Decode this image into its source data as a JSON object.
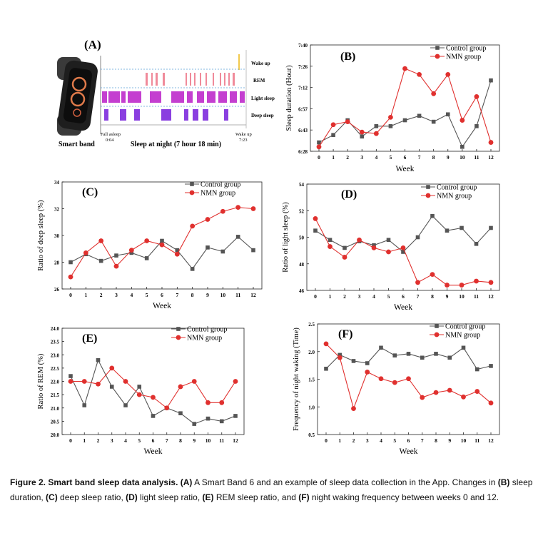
{
  "panel_a": {
    "label": "(A)",
    "device_caption": "Smart band",
    "chart_caption": "Sleep at night (7 hour 18 min)",
    "stages": [
      "Wake up",
      "REM",
      "Light sleep",
      "Deep sleep"
    ],
    "fall_asleep_label": "Fall asleep",
    "fall_asleep_time": "0:04",
    "wake_label": "Wake up",
    "wake_time": "7:23",
    "colors": {
      "rem": "#f08a9a",
      "light": "#c43fd0",
      "deep": "#8a3fe0",
      "wake": "#f2c94c",
      "band": "#2b2b2b",
      "strap": "#3a3a3a"
    }
  },
  "chart_data": [
    {
      "panel": "(B)",
      "type": "line",
      "ylabel": "Sleep duration (Hour)",
      "xlabel": "Week",
      "x": [
        0,
        1,
        2,
        3,
        4,
        5,
        6,
        7,
        8,
        9,
        10,
        11,
        12
      ],
      "yticks": [
        "6:28",
        "6:43",
        "6:57",
        "7:12",
        "7:26",
        "7:40"
      ],
      "ylim": [
        388,
        460
      ],
      "legend": "top-right",
      "series": [
        {
          "name": "Control group",
          "color": "#555555",
          "marker": "square",
          "values": [
            394,
            399,
            409,
            398,
            405,
            405,
            409,
            412,
            408,
            413,
            391,
            405,
            436
          ]
        },
        {
          "name": "NMN group",
          "color": "#e0302e",
          "marker": "circle",
          "values": [
            391,
            406,
            408,
            401,
            400,
            411,
            444,
            440,
            427,
            440,
            409,
            425,
            394
          ]
        }
      ]
    },
    {
      "panel": "(C)",
      "type": "line",
      "ylabel": "Ratio of deep sleep (%)",
      "xlabel": "Week",
      "x": [
        0,
        1,
        2,
        3,
        4,
        5,
        6,
        7,
        8,
        9,
        10,
        11,
        12
      ],
      "yticks": [
        "26",
        "28",
        "30",
        "32",
        "34"
      ],
      "ylim": [
        26,
        34
      ],
      "legend": "top-right",
      "series": [
        {
          "name": "Control group",
          "color": "#555555",
          "marker": "square",
          "values": [
            28.0,
            28.6,
            28.1,
            28.5,
            28.7,
            28.3,
            29.6,
            28.9,
            27.5,
            29.1,
            28.8,
            29.9,
            28.9
          ]
        },
        {
          "name": "NMN group",
          "color": "#e0302e",
          "marker": "circle",
          "values": [
            26.9,
            28.7,
            29.6,
            27.7,
            28.9,
            29.6,
            29.3,
            28.6,
            30.7,
            31.2,
            31.8,
            32.1,
            32.0
          ]
        }
      ]
    },
    {
      "panel": "(D)",
      "type": "line",
      "ylabel": "Ratio of light sleep (%)",
      "xlabel": "Week",
      "x": [
        0,
        1,
        2,
        3,
        4,
        5,
        6,
        7,
        8,
        9,
        10,
        11,
        12
      ],
      "yticks": [
        "46",
        "48",
        "50",
        "52",
        "54"
      ],
      "ylim": [
        46,
        54
      ],
      "legend": "top-right",
      "series": [
        {
          "name": "Control group",
          "color": "#555555",
          "marker": "square",
          "values": [
            50.5,
            49.8,
            49.2,
            49.7,
            49.4,
            49.8,
            48.9,
            50.0,
            51.6,
            50.5,
            50.7,
            49.5,
            50.7
          ]
        },
        {
          "name": "NMN group",
          "color": "#e0302e",
          "marker": "circle",
          "values": [
            51.4,
            49.3,
            48.5,
            49.8,
            49.2,
            48.9,
            49.2,
            46.6,
            47.2,
            46.4,
            46.4,
            46.7,
            46.6
          ]
        }
      ]
    },
    {
      "panel": "(E)",
      "type": "line",
      "ylabel": "Ratio of REM (%)",
      "xlabel": "Week",
      "x": [
        0,
        1,
        2,
        3,
        4,
        5,
        6,
        7,
        8,
        9,
        10,
        11,
        12
      ],
      "yticks": [
        "20.0",
        "20.5",
        "21.0",
        "21.5",
        "22.0",
        "22.5",
        "23.0",
        "23.5",
        "24.0"
      ],
      "ylim": [
        20.0,
        24.0
      ],
      "legend": "top-right",
      "series": [
        {
          "name": "Control group",
          "color": "#555555",
          "marker": "square",
          "values": [
            22.2,
            21.1,
            22.8,
            21.8,
            21.1,
            21.8,
            20.7,
            21.0,
            20.8,
            20.4,
            20.6,
            20.5,
            20.7
          ]
        },
        {
          "name": "NMN group",
          "color": "#e0302e",
          "marker": "circle",
          "values": [
            22.0,
            22.0,
            21.9,
            22.5,
            22.0,
            21.5,
            21.4,
            21.0,
            21.8,
            22.0,
            21.2,
            21.2,
            22.0
          ]
        }
      ]
    },
    {
      "panel": "(F)",
      "type": "line",
      "ylabel": "Frequency of night waking (Time)",
      "xlabel": "Week",
      "x": [
        0,
        1,
        2,
        3,
        4,
        5,
        6,
        7,
        8,
        9,
        10,
        11,
        12
      ],
      "yticks": [
        "0.5",
        "1.0",
        "1.5",
        "2.0",
        "2.5"
      ],
      "ylim": [
        0.5,
        2.5
      ],
      "legend": "top-right",
      "series": [
        {
          "name": "Control group",
          "color": "#555555",
          "marker": "square",
          "values": [
            1.69,
            1.94,
            1.83,
            1.79,
            2.07,
            1.93,
            1.96,
            1.89,
            1.96,
            1.89,
            2.07,
            1.68,
            1.74
          ]
        },
        {
          "name": "NMN group",
          "color": "#e0302e",
          "marker": "circle",
          "values": [
            2.14,
            1.89,
            0.97,
            1.63,
            1.51,
            1.44,
            1.51,
            1.17,
            1.26,
            1.3,
            1.18,
            1.28,
            1.07
          ]
        }
      ]
    }
  ],
  "caption": {
    "bold": "Figure 2. Smart band sleep data analysis.",
    "parts": [
      {
        "b": "(A)",
        "t": " A Smart Band 6 and an example of sleep data collection in the App. Changes in "
      },
      {
        "b": "(B)",
        "t": " sleep duration, "
      },
      {
        "b": "(C)",
        "t": " deep sleep ratio, "
      },
      {
        "b": "(D)",
        "t": " light sleep ratio, "
      },
      {
        "b": "(E)",
        "t": " REM sleep ratio, and "
      },
      {
        "b": "(F)",
        "t": " night waking frequency between weeks 0 and 12."
      }
    ]
  }
}
